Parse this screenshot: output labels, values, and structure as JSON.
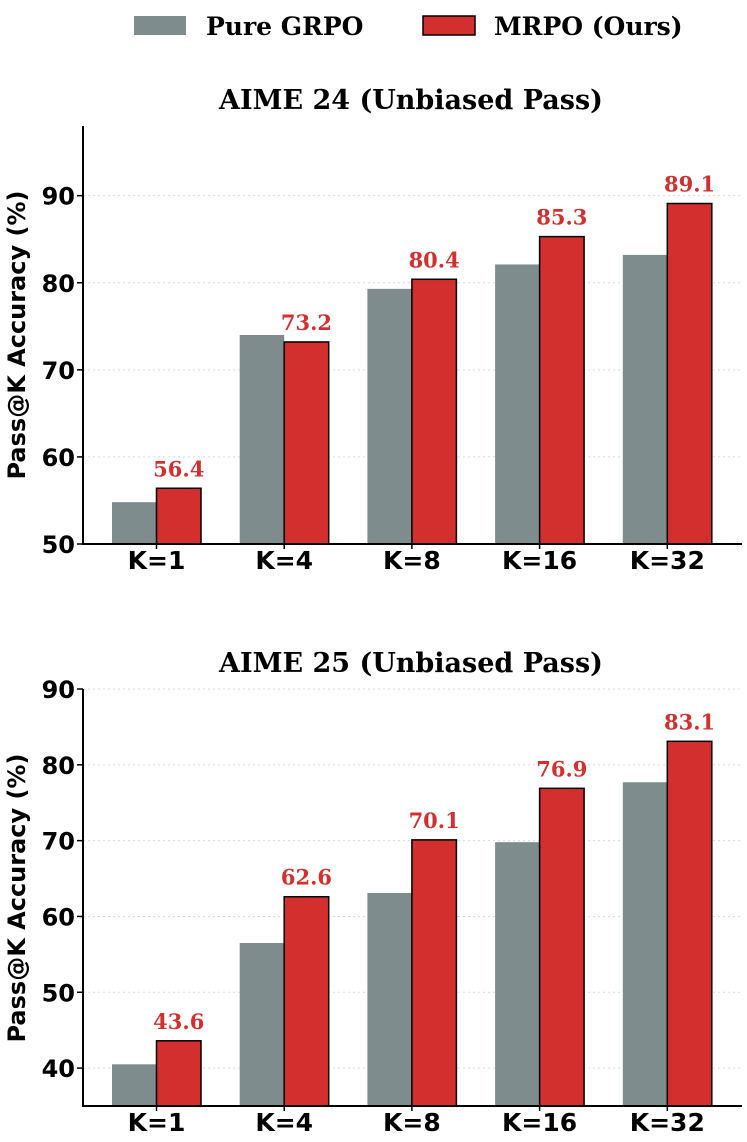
{
  "legend": [
    {
      "name": "Pure GRPO",
      "color": "#7f8c8d"
    },
    {
      "name": "MRPO (Ours)",
      "color": "#d32f2f"
    }
  ],
  "chart_data": [
    {
      "type": "bar",
      "title": "AIME 24 (Unbiased Pass)",
      "ylabel": "Pass@K Accuracy (%)",
      "xlabel": "",
      "categories": [
        "K=1",
        "K=4",
        "K=8",
        "K=16",
        "K=32"
      ],
      "ylim": [
        50,
        98
      ],
      "yticks": [
        50,
        60,
        70,
        80,
        90
      ],
      "grid": true,
      "series": [
        {
          "name": "Pure GRPO",
          "color": "#7f8c8d",
          "values": [
            54.8,
            74.0,
            79.3,
            82.1,
            83.2
          ]
        },
        {
          "name": "MRPO (Ours)",
          "color": "#d32f2f",
          "values": [
            56.4,
            73.2,
            80.4,
            85.3,
            89.1
          ],
          "labels": [
            "56.4",
            "73.2",
            "80.4",
            "85.3",
            "89.1"
          ]
        }
      ]
    },
    {
      "type": "bar",
      "title": "AIME 25 (Unbiased Pass)",
      "ylabel": "Pass@K Accuracy (%)",
      "xlabel": "",
      "categories": [
        "K=1",
        "K=4",
        "K=8",
        "K=16",
        "K=32"
      ],
      "ylim": [
        35,
        90
      ],
      "yticks": [
        40,
        50,
        60,
        70,
        80,
        90
      ],
      "grid": true,
      "series": [
        {
          "name": "Pure GRPO",
          "color": "#7f8c8d",
          "values": [
            40.5,
            56.5,
            63.1,
            69.8,
            77.7
          ]
        },
        {
          "name": "MRPO (Ours)",
          "color": "#d32f2f",
          "values": [
            43.6,
            62.6,
            70.1,
            76.9,
            83.1
          ],
          "labels": [
            "43.6",
            "62.6",
            "70.1",
            "76.9",
            "83.1"
          ]
        }
      ]
    }
  ]
}
